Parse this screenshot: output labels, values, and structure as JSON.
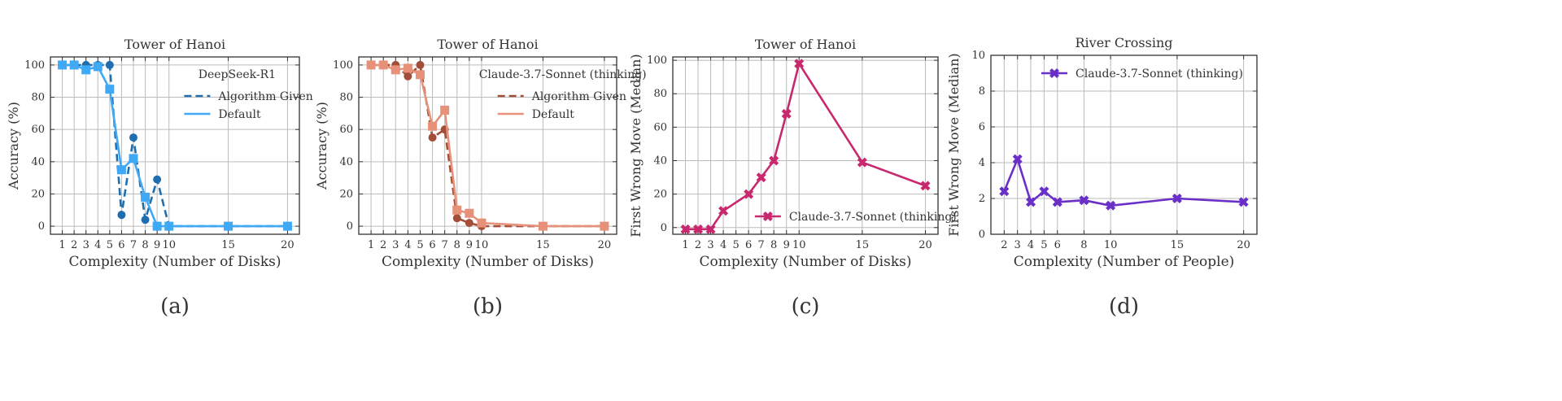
{
  "chart_data": [
    {
      "id": "a",
      "type": "line",
      "panel_label": "(a)",
      "title": "Tower of Hanoi",
      "xlabel": "Complexity (Number of Disks)",
      "ylabel": "Accuracy (%)",
      "xticks": [
        1,
        2,
        3,
        4,
        5,
        6,
        7,
        8,
        9,
        10,
        15,
        20
      ],
      "yticks": [
        0,
        20,
        40,
        60,
        80,
        100
      ],
      "xlim": [
        0,
        21
      ],
      "ylim": [
        -5,
        105
      ],
      "grid": true,
      "legend": {
        "title": "DeepSeek-R1",
        "placement": "top-right"
      },
      "series": [
        {
          "name": "Algorithm Given",
          "color": "#1f6fb0",
          "dash": true,
          "marker": "circle",
          "x": [
            1,
            2,
            3,
            4,
            5,
            6,
            7,
            8,
            9,
            10,
            15,
            20
          ],
          "y": [
            100,
            100,
            100,
            100,
            100,
            7,
            55,
            4,
            29,
            0,
            0,
            0
          ]
        },
        {
          "name": "Default",
          "color": "#3fa9f5",
          "dash": false,
          "marker": "square",
          "x": [
            1,
            2,
            3,
            4,
            5,
            6,
            7,
            8,
            9,
            10,
            15,
            20
          ],
          "y": [
            100,
            100,
            97,
            99,
            85,
            35,
            42,
            18,
            0,
            0,
            0,
            0
          ]
        }
      ]
    },
    {
      "id": "b",
      "type": "line",
      "panel_label": "(b)",
      "title": "Tower of Hanoi",
      "xlabel": "Complexity (Number of Disks)",
      "ylabel": "Accuracy (%)",
      "xticks": [
        1,
        2,
        3,
        4,
        5,
        6,
        7,
        8,
        9,
        10,
        15,
        20
      ],
      "yticks": [
        0,
        20,
        40,
        60,
        80,
        100
      ],
      "xlim": [
        0,
        21
      ],
      "ylim": [
        -5,
        105
      ],
      "grid": true,
      "legend": {
        "title": "Claude-3.7-Sonnet (thinking)",
        "placement": "top-right"
      },
      "series": [
        {
          "name": "Algorithm Given",
          "color": "#a24e38",
          "dash": true,
          "marker": "circle",
          "x": [
            1,
            2,
            3,
            4,
            5,
            6,
            7,
            8,
            9,
            10,
            15,
            20
          ],
          "y": [
            100,
            100,
            100,
            93,
            100,
            55,
            60,
            5,
            2,
            0,
            0,
            0
          ]
        },
        {
          "name": "Default",
          "color": "#e8917a",
          "dash": false,
          "marker": "square",
          "x": [
            1,
            2,
            3,
            4,
            5,
            6,
            7,
            8,
            9,
            10,
            15,
            20
          ],
          "y": [
            100,
            100,
            97,
            98,
            94,
            62,
            72,
            10,
            8,
            2,
            0,
            0
          ]
        }
      ]
    },
    {
      "id": "c",
      "type": "line",
      "panel_label": "(c)",
      "title": "Tower of Hanoi",
      "xlabel": "Complexity (Number of Disks)",
      "ylabel": "First Wrong Move (Median)",
      "xticks": [
        1,
        2,
        3,
        4,
        5,
        6,
        7,
        8,
        9,
        10,
        15,
        20
      ],
      "yticks": [
        0,
        20,
        40,
        60,
        80,
        100
      ],
      "xlim": [
        0,
        21
      ],
      "ylim": [
        -4,
        102
      ],
      "grid": true,
      "legend": {
        "title": "",
        "placement": "bottom-right"
      },
      "series": [
        {
          "name": "Claude-3.7-Sonnet (thinking)",
          "color": "#c8286e",
          "dash": false,
          "marker": "x",
          "x": [
            1,
            2,
            3,
            4,
            6,
            7,
            8,
            9,
            10,
            15,
            20
          ],
          "y": [
            -1,
            -1,
            -1,
            10,
            20,
            30,
            40,
            68,
            98,
            39,
            25
          ]
        }
      ]
    },
    {
      "id": "d",
      "type": "line",
      "panel_label": "(d)",
      "title": "River Crossing",
      "xlabel": "Complexity (Number of People)",
      "ylabel": "First Wrong Move (Median)",
      "xticks": [
        2,
        3,
        4,
        5,
        6,
        8,
        10,
        15,
        20
      ],
      "yticks": [
        0,
        2,
        4,
        6,
        8,
        10
      ],
      "xlim": [
        1,
        21
      ],
      "ylim": [
        0,
        10
      ],
      "grid": true,
      "legend": {
        "title": "",
        "placement": "top-right"
      },
      "series": [
        {
          "name": "Claude-3.7-Sonnet (thinking)",
          "color": "#6a2fc8",
          "dash": false,
          "marker": "x",
          "x": [
            2,
            3,
            4,
            5,
            6,
            8,
            10,
            15,
            20
          ],
          "y": [
            2.4,
            4.2,
            1.8,
            2.4,
            1.8,
            1.9,
            1.6,
            2.0,
            1.8
          ]
        }
      ]
    }
  ]
}
